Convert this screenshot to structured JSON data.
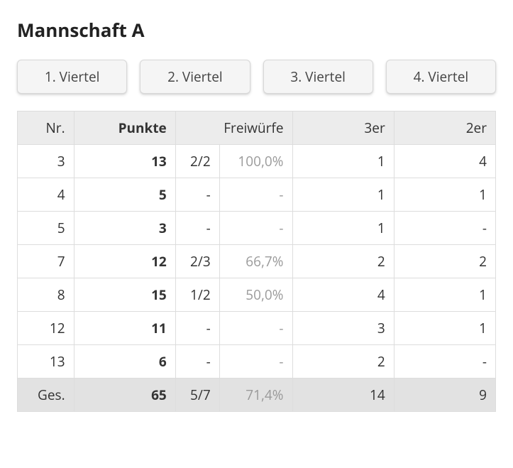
{
  "title": "Mannschaft A",
  "tabs": {
    "q1": "1. Viertel",
    "q2": "2. Viertel",
    "q3": "3. Viertel",
    "q4": "4. Viertel"
  },
  "table": {
    "type": "table",
    "header_bg": "#ececec",
    "row_bg": "#ffffff",
    "totals_bg": "#e2e2e2",
    "border_color": "#dddddd",
    "pct_color": "#9a9a9a",
    "columns": {
      "nr": {
        "label": "Nr.",
        "bold": false
      },
      "pts": {
        "label": "Punkte",
        "bold": true
      },
      "ft": {
        "label": "Freiwürfe",
        "bold": false
      },
      "threes": {
        "label": "3er",
        "bold": false
      },
      "twos": {
        "label": "2er",
        "bold": false
      }
    },
    "rows": [
      {
        "nr": "3",
        "pts": "13",
        "ft": "2/2",
        "ftpct": "100,0%",
        "threes": "1",
        "twos": "4"
      },
      {
        "nr": "4",
        "pts": "5",
        "ft": "-",
        "ftpct": "-",
        "threes": "1",
        "twos": "1"
      },
      {
        "nr": "5",
        "pts": "3",
        "ft": "-",
        "ftpct": "-",
        "threes": "1",
        "twos": "-"
      },
      {
        "nr": "7",
        "pts": "12",
        "ft": "2/3",
        "ftpct": "66,7%",
        "threes": "2",
        "twos": "2"
      },
      {
        "nr": "8",
        "pts": "15",
        "ft": "1/2",
        "ftpct": "50,0%",
        "threes": "4",
        "twos": "1"
      },
      {
        "nr": "12",
        "pts": "11",
        "ft": "-",
        "ftpct": "-",
        "threes": "3",
        "twos": "1"
      },
      {
        "nr": "13",
        "pts": "6",
        "ft": "-",
        "ftpct": "-",
        "threes": "2",
        "twos": "-"
      }
    ],
    "totals": {
      "nr": "Ges.",
      "pts": "65",
      "ft": "5/7",
      "ftpct": "71,4%",
      "threes": "14",
      "twos": "9"
    }
  }
}
